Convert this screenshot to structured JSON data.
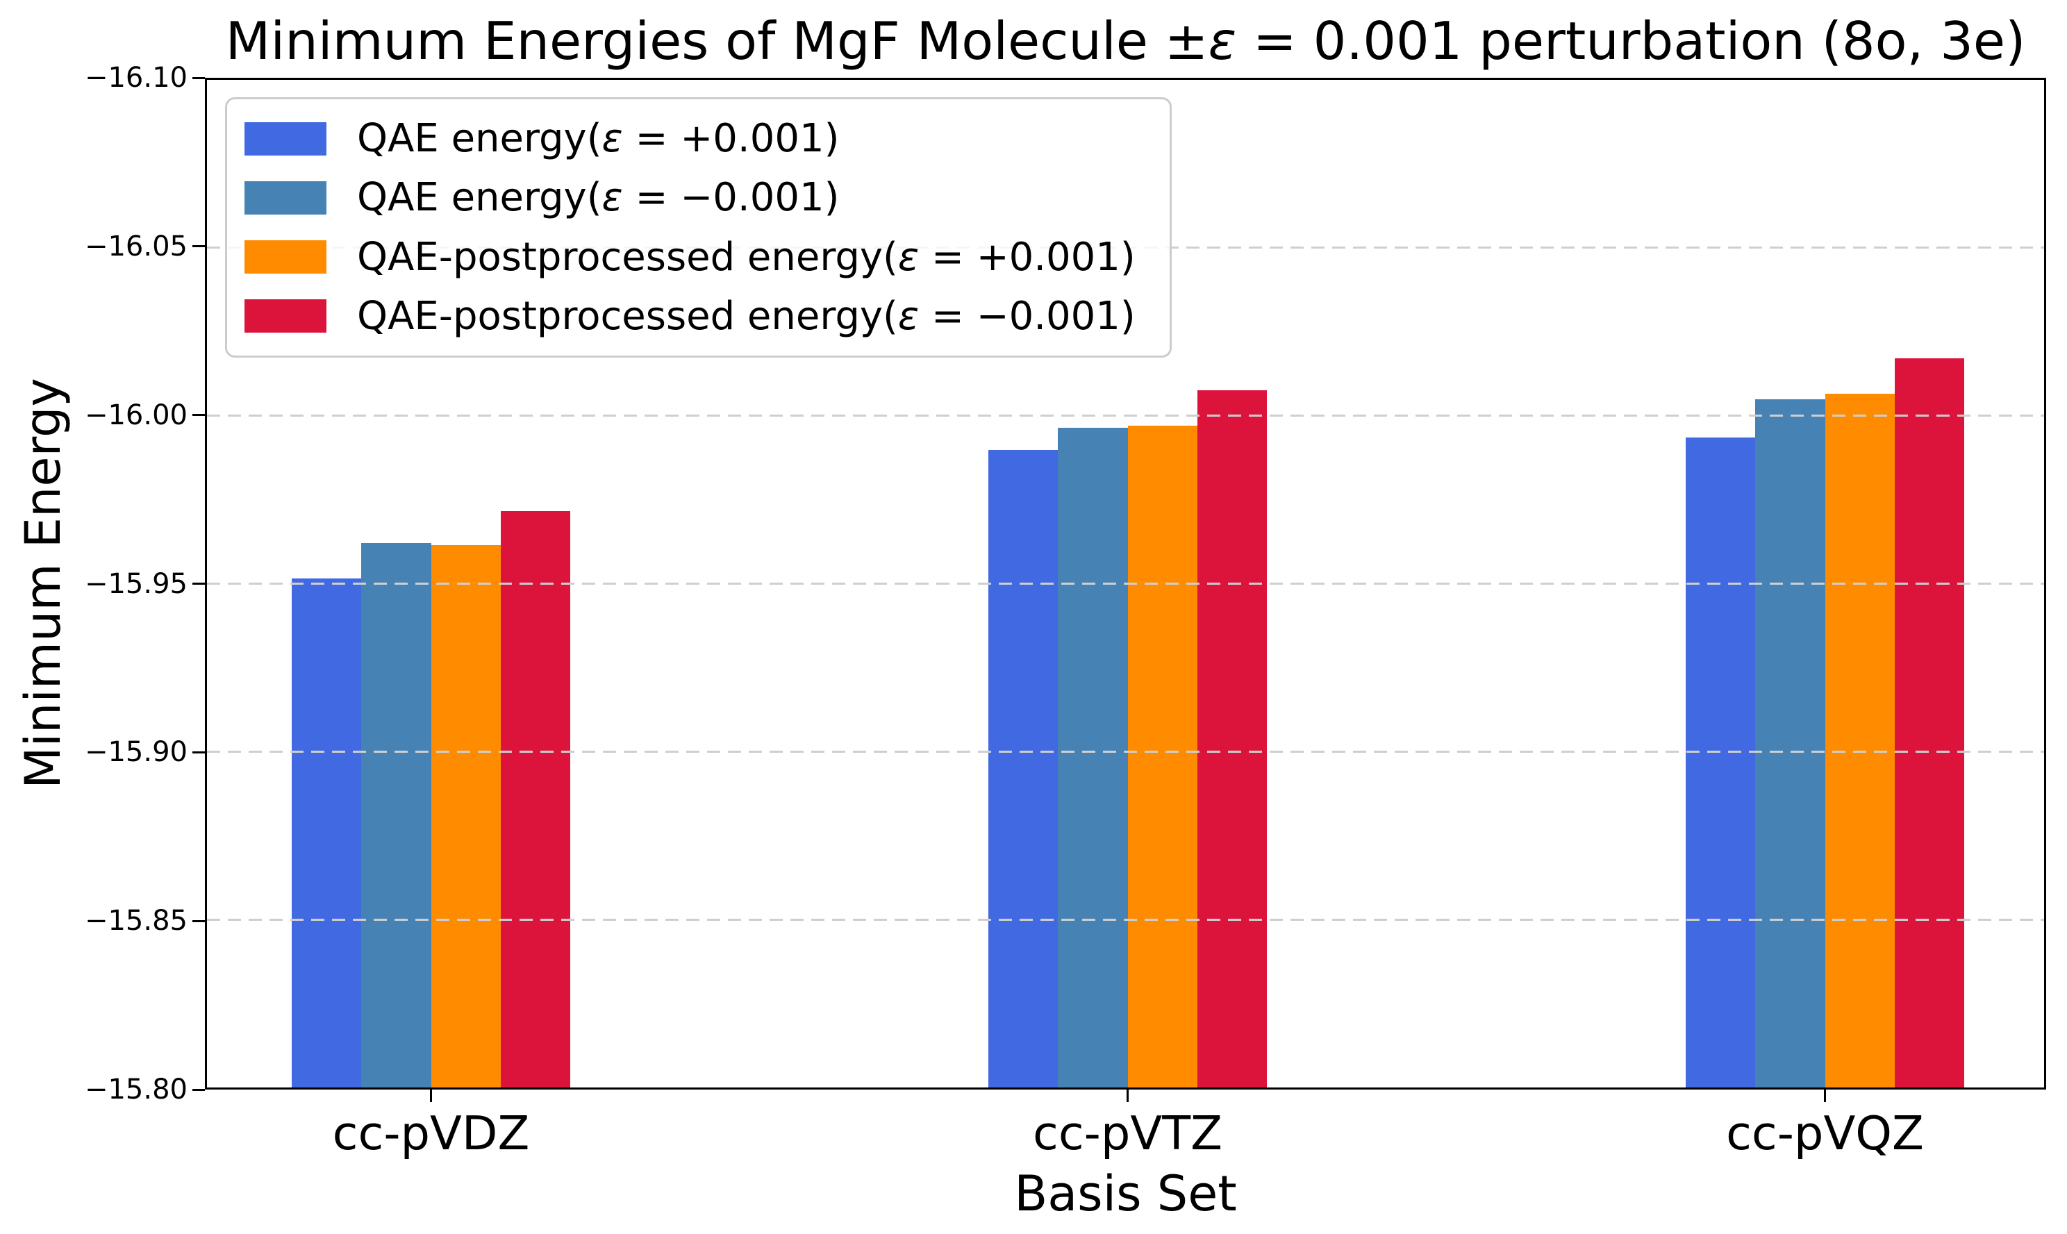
{
  "figure": {
    "background": "#ffffff"
  },
  "chart_data": {
    "type": "bar",
    "title": "Minimum Energies of MgF Molecule ±ε = 0.001 perturbation (8o, 3e)",
    "title_parts": [
      "Minimum Energies of MgF Molecule ±",
      "ε",
      " = 0.001 perturbation (8o, 3e)"
    ],
    "xlabel": "Basis Set",
    "ylabel": "Minimum Energy",
    "categories": [
      "cc-pVDZ",
      "cc-pVTZ",
      "cc-pVQZ"
    ],
    "series": [
      {
        "name": "QAE energy(ε = +0.001)",
        "color": "#4169e1",
        "values": [
          -15.9515,
          -15.9898,
          -15.9936
        ]
      },
      {
        "name": "QAE energy(ε = −0.001)",
        "color": "#4682b4",
        "values": [
          -15.9622,
          -15.9964,
          -16.0049
        ]
      },
      {
        "name": "QAE-postprocessed energy(ε = +0.001)",
        "color": "#ff8c00",
        "values": [
          -15.9614,
          -15.9971,
          -16.0065
        ]
      },
      {
        "name": "QAE-postprocessed energy(ε = −0.001)",
        "color": "#dc143c",
        "values": [
          -15.9717,
          -16.0076,
          -16.017
        ]
      }
    ],
    "y_axis": {
      "top_value": -16.1,
      "bottom_value": -15.8,
      "inverted": true,
      "ticks": [
        -16.1,
        -16.05,
        -16.0,
        -15.95,
        -15.9,
        -15.85,
        -15.8
      ],
      "tick_labels": [
        "−16.10",
        "−16.05",
        "−16.00",
        "−15.95",
        "−15.90",
        "−15.85",
        "−15.80"
      ]
    },
    "grid": {
      "axis": "y",
      "style": "dashed",
      "color": "#cfcfcf",
      "on_top_of_bars": true
    },
    "legend": {
      "position": "upper left",
      "items": [
        {
          "prefix": "QAE energy(",
          "epsilon": "ε",
          "suffix": " = +0.001)"
        },
        {
          "prefix": "QAE energy(",
          "epsilon": "ε",
          "suffix": " = −0.001)"
        },
        {
          "prefix": "QAE-postprocessed energy(",
          "epsilon": "ε",
          "suffix": " = +0.001)"
        },
        {
          "prefix": "QAE-postprocessed energy(",
          "epsilon": "ε",
          "suffix": " = −0.001)"
        }
      ]
    }
  }
}
